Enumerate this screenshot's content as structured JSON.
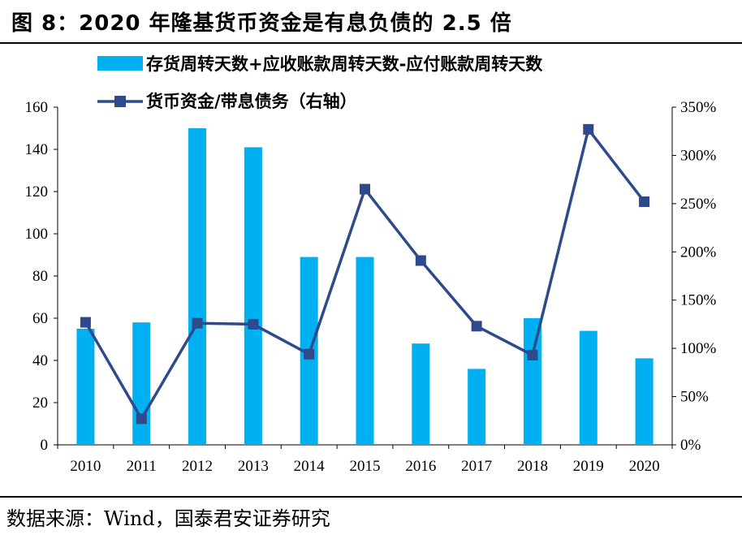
{
  "figure": {
    "title": "图 8：2020 年隆基货币资金是有息负债的 2.5 倍",
    "source": "数据来源：Wind，国泰君安证券研究"
  },
  "colors": {
    "bar": "#00B0F0",
    "line": "#2E4A8C"
  },
  "chart_data": {
    "type": "bar",
    "categories": [
      "2010",
      "2011",
      "2012",
      "2013",
      "2014",
      "2015",
      "2016",
      "2017",
      "2018",
      "2019",
      "2020"
    ],
    "series": [
      {
        "name": "存货周转天数+应收账款周转天数-应付账款周转天数",
        "type": "bar",
        "axis": "left",
        "values": [
          55,
          58,
          150,
          141,
          89,
          89,
          48,
          36,
          60,
          54,
          41
        ]
      },
      {
        "name": "货币资金/带息债务（右轴）",
        "type": "line",
        "axis": "right",
        "values": [
          1.27,
          0.27,
          1.26,
          1.25,
          0.94,
          2.65,
          1.91,
          1.23,
          0.93,
          3.27,
          2.52
        ]
      }
    ],
    "ylim": [
      0,
      160
    ],
    "y_ticks": [
      "0",
      "20",
      "40",
      "60",
      "80",
      "100",
      "120",
      "140",
      "160"
    ],
    "y2lim": [
      0,
      3.5
    ],
    "y2_ticks": [
      "0%",
      "50%",
      "100%",
      "150%",
      "200%",
      "250%",
      "300%",
      "350%"
    ],
    "legend": "top",
    "grid": false
  }
}
